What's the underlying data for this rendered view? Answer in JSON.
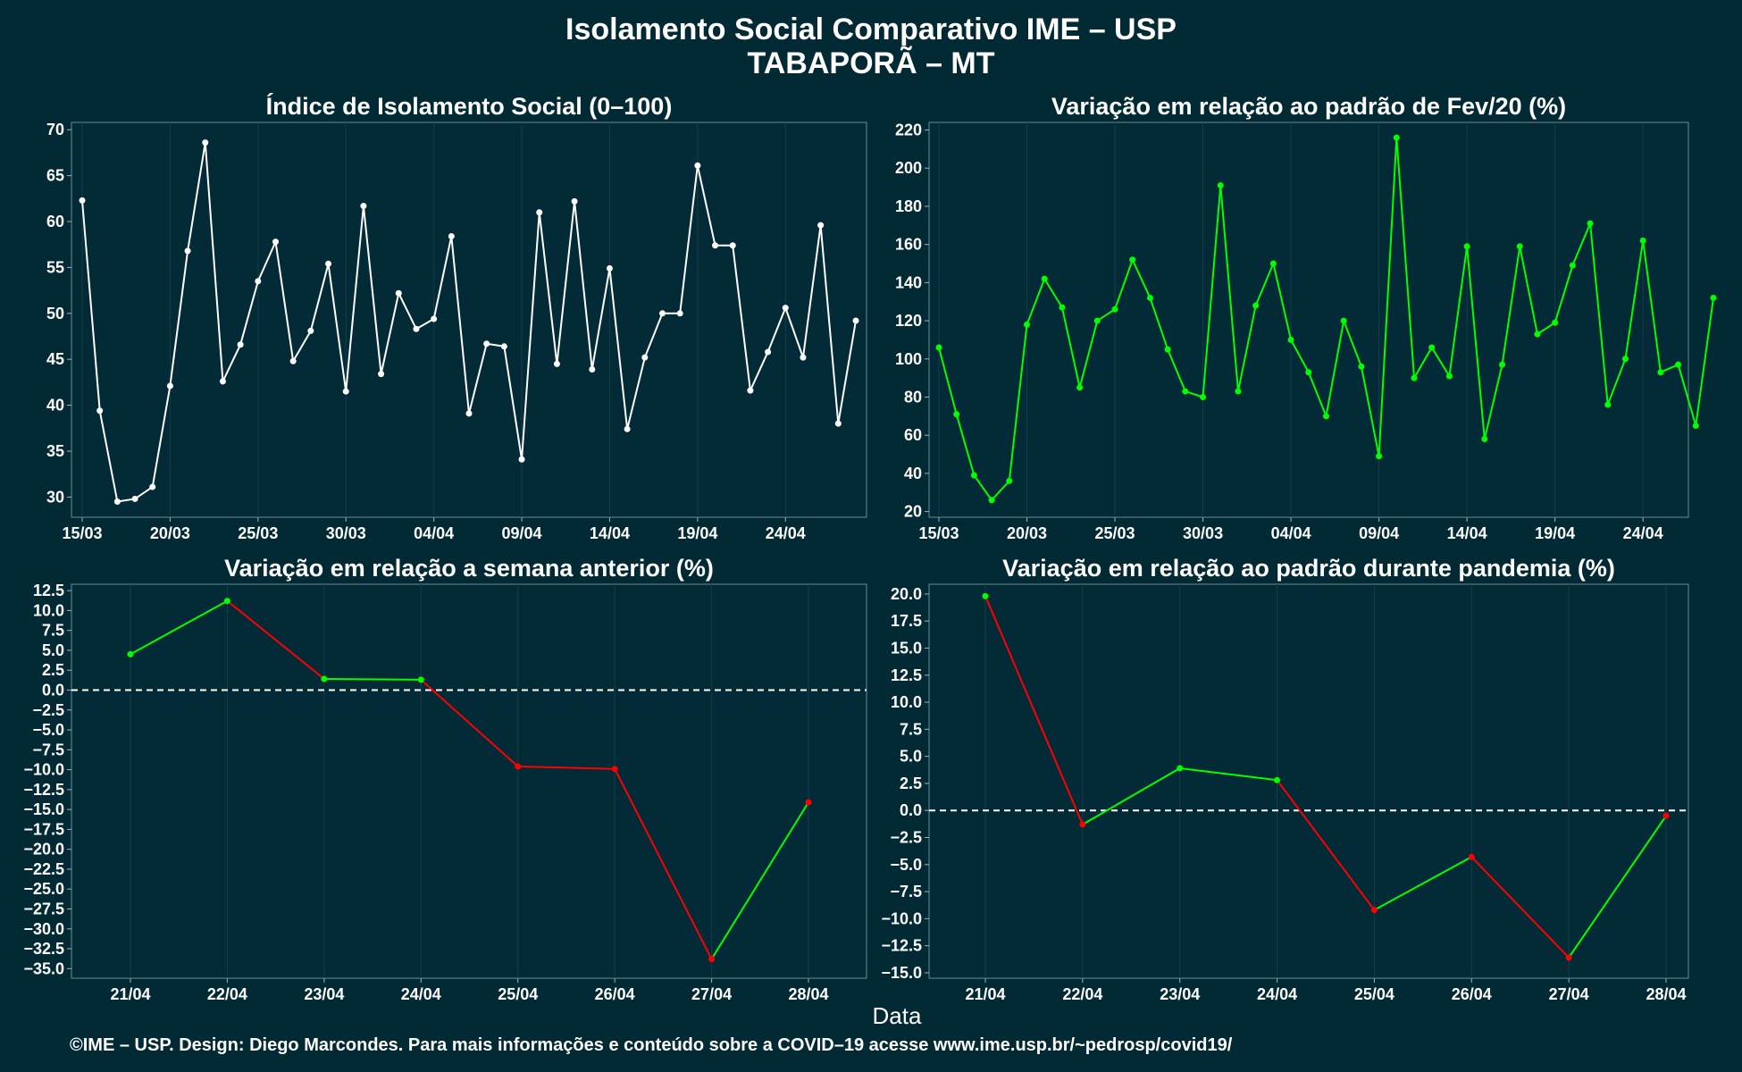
{
  "title": "Isolamento Social Comparativo IME – USP",
  "subtitle": "TABAPORÃ – MT",
  "xlabel": "Data",
  "footer": "©IME – USP. Design: Diego Marcondes. Para mais informações e conteúdo sobre a COVID–19 acesse www.ime.usp.br/~pedrosp/covid19/",
  "colors": {
    "background": "#022a35",
    "panel": "#032a37",
    "white_series": "#ffffff",
    "green_series": "#00ff00",
    "positive": "#00ff00",
    "negative": "#ff0000",
    "grid": "#163c47"
  },
  "chart_data": [
    {
      "type": "line",
      "title": "Índice de Isolamento Social (0–100)",
      "color": "#ffffff",
      "x": [
        "15/03",
        "16/03",
        "17/03",
        "18/03",
        "19/03",
        "20/03",
        "21/03",
        "22/03",
        "23/03",
        "24/03",
        "25/03",
        "26/03",
        "27/03",
        "28/03",
        "29/03",
        "30/03",
        "31/03",
        "01/04",
        "02/04",
        "03/04",
        "04/04",
        "05/04",
        "06/04",
        "07/04",
        "08/04",
        "09/04",
        "10/04",
        "11/04",
        "12/04",
        "13/04",
        "14/04",
        "15/04",
        "16/04",
        "17/04",
        "18/04",
        "19/04",
        "20/04",
        "21/04",
        "22/04",
        "23/04",
        "24/04",
        "25/04",
        "26/04",
        "27/04",
        "28/04"
      ],
      "values": [
        62.3,
        39.4,
        29.5,
        29.8,
        31.1,
        42.1,
        56.8,
        68.6,
        42.6,
        46.6,
        53.5,
        57.8,
        44.8,
        48.1,
        55.4,
        41.5,
        61.7,
        43.4,
        52.2,
        48.3,
        49.4,
        58.4,
        39.1,
        46.7,
        46.4,
        34.1,
        61.0,
        44.5,
        62.2,
        43.9,
        54.9,
        37.4,
        45.2,
        50.0,
        50.0,
        66.1,
        57.4,
        57.4,
        41.6,
        45.8,
        50.6,
        45.2,
        59.6,
        38.0,
        49.2
      ],
      "xticks": [
        "15/03",
        "20/03",
        "25/03",
        "30/03",
        "04/04",
        "09/04",
        "14/04",
        "19/04",
        "24/04"
      ],
      "yticks": [
        30,
        35,
        40,
        45,
        50,
        55,
        60,
        65,
        70
      ],
      "ylim": [
        27.8,
        70.8
      ]
    },
    {
      "type": "line",
      "title": "Variação em relação ao padrão de Fev/20 (%)",
      "color": "#00ff00",
      "x": [
        "15/03",
        "16/03",
        "17/03",
        "18/03",
        "19/03",
        "20/03",
        "21/03",
        "22/03",
        "23/03",
        "24/03",
        "25/03",
        "26/03",
        "27/03",
        "28/03",
        "29/03",
        "30/03",
        "31/03",
        "01/04",
        "02/04",
        "03/04",
        "04/04",
        "05/04",
        "06/04",
        "07/04",
        "08/04",
        "09/04",
        "10/04",
        "11/04",
        "12/04",
        "13/04",
        "14/04",
        "15/04",
        "16/04",
        "17/04",
        "18/04",
        "19/04",
        "20/04",
        "21/04",
        "22/04",
        "23/04",
        "24/04",
        "25/04",
        "26/04",
        "27/04",
        "28/04"
      ],
      "values": [
        106,
        71,
        39,
        26,
        36,
        118,
        142,
        127,
        85,
        120,
        126,
        152,
        132,
        105,
        83,
        80,
        191,
        83,
        128,
        150,
        110,
        93,
        70,
        120,
        96,
        49,
        216,
        90,
        106,
        91,
        159,
        58,
        97,
        159,
        113,
        119,
        149,
        171,
        76,
        100,
        162,
        93,
        97,
        65,
        132
      ],
      "xticks": [
        "15/03",
        "20/03",
        "25/03",
        "30/03",
        "04/04",
        "09/04",
        "14/04",
        "19/04",
        "24/04"
      ],
      "yticks": [
        20,
        40,
        60,
        80,
        100,
        120,
        140,
        160,
        180,
        200,
        220
      ],
      "ylim": [
        17,
        224
      ]
    },
    {
      "type": "line",
      "title": "Variação em relação a semana anterior (%)",
      "x": [
        "21/04",
        "22/04",
        "23/04",
        "24/04",
        "25/04",
        "26/04",
        "27/04",
        "28/04"
      ],
      "values": [
        4.5,
        11.2,
        1.4,
        1.3,
        -9.6,
        -9.9,
        -33.8,
        -14.1
      ],
      "xticks": [
        "21/04",
        "22/04",
        "23/04",
        "24/04",
        "25/04",
        "26/04",
        "27/04",
        "28/04"
      ],
      "yticks": [
        12.5,
        10.0,
        7.5,
        5.0,
        2.5,
        0.0,
        -2.5,
        -5.0,
        -7.5,
        -10.0,
        -12.5,
        -15.0,
        -17.5,
        -20.0,
        -22.5,
        -25.0,
        -27.5,
        -30.0,
        -32.5,
        -35.0
      ],
      "ylim": [
        -36.2,
        13.3
      ],
      "reference_line": 0
    },
    {
      "type": "line",
      "title": "Variação em relação ao padrão durante pandemia (%)",
      "x": [
        "21/04",
        "22/04",
        "23/04",
        "24/04",
        "25/04",
        "26/04",
        "27/04",
        "28/04"
      ],
      "values": [
        19.8,
        -1.3,
        3.9,
        2.8,
        -9.2,
        -4.3,
        -13.6,
        -0.5
      ],
      "xticks": [
        "21/04",
        "22/04",
        "23/04",
        "24/04",
        "25/04",
        "26/04",
        "27/04",
        "28/04"
      ],
      "yticks": [
        20.0,
        17.5,
        15.0,
        12.5,
        10.0,
        7.5,
        5.0,
        2.5,
        0.0,
        -2.5,
        -5.0,
        -7.5,
        -10.0,
        -12.5,
        -15.0
      ],
      "ylim": [
        -15.5,
        20.9
      ],
      "reference_line": 0
    }
  ]
}
